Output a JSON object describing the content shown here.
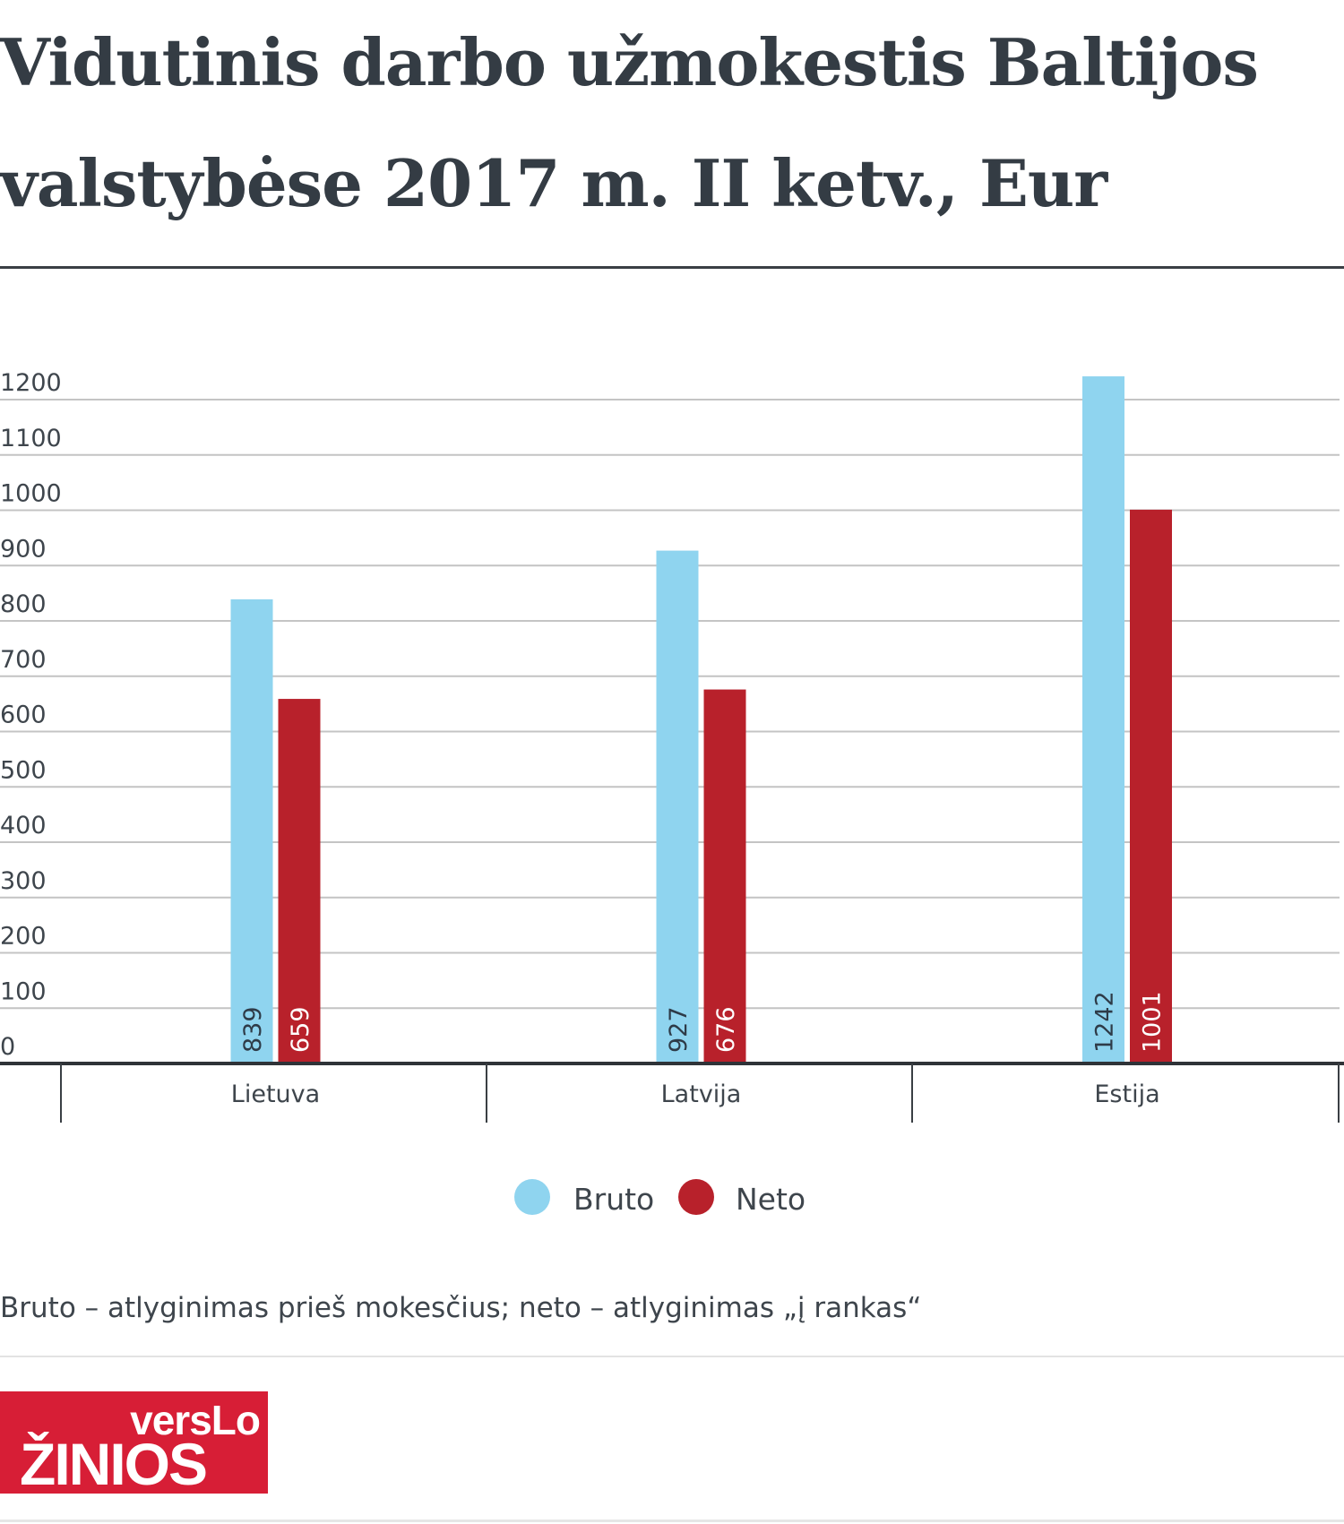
{
  "chart_data": {
    "type": "bar",
    "title": "Vidutinis darbo užmokestis Baltijos valstybėse 2017 m. II ketv., Eur",
    "categories": [
      "Lietuva",
      "Latvija",
      "Estija"
    ],
    "series": [
      {
        "name": "Bruto",
        "color": "#8fd4ef",
        "values": [
          839,
          927,
          1242
        ]
      },
      {
        "name": "Neto",
        "color": "#b8212b",
        "values": [
          659,
          676,
          1001
        ]
      }
    ],
    "yticks": [
      0,
      100,
      200,
      300,
      400,
      500,
      600,
      700,
      800,
      900,
      1000,
      1100,
      1200
    ],
    "ylim": [
      0,
      1200
    ],
    "grid": true,
    "legend": "bottom-center",
    "xlabel": "",
    "ylabel": ""
  },
  "note": "Bruto – atlyginimas prieš mokesčius; neto – atlyginimas „į rankas“",
  "logo": {
    "line1": "VERSLO",
    "line2": "ŽINIOS"
  }
}
